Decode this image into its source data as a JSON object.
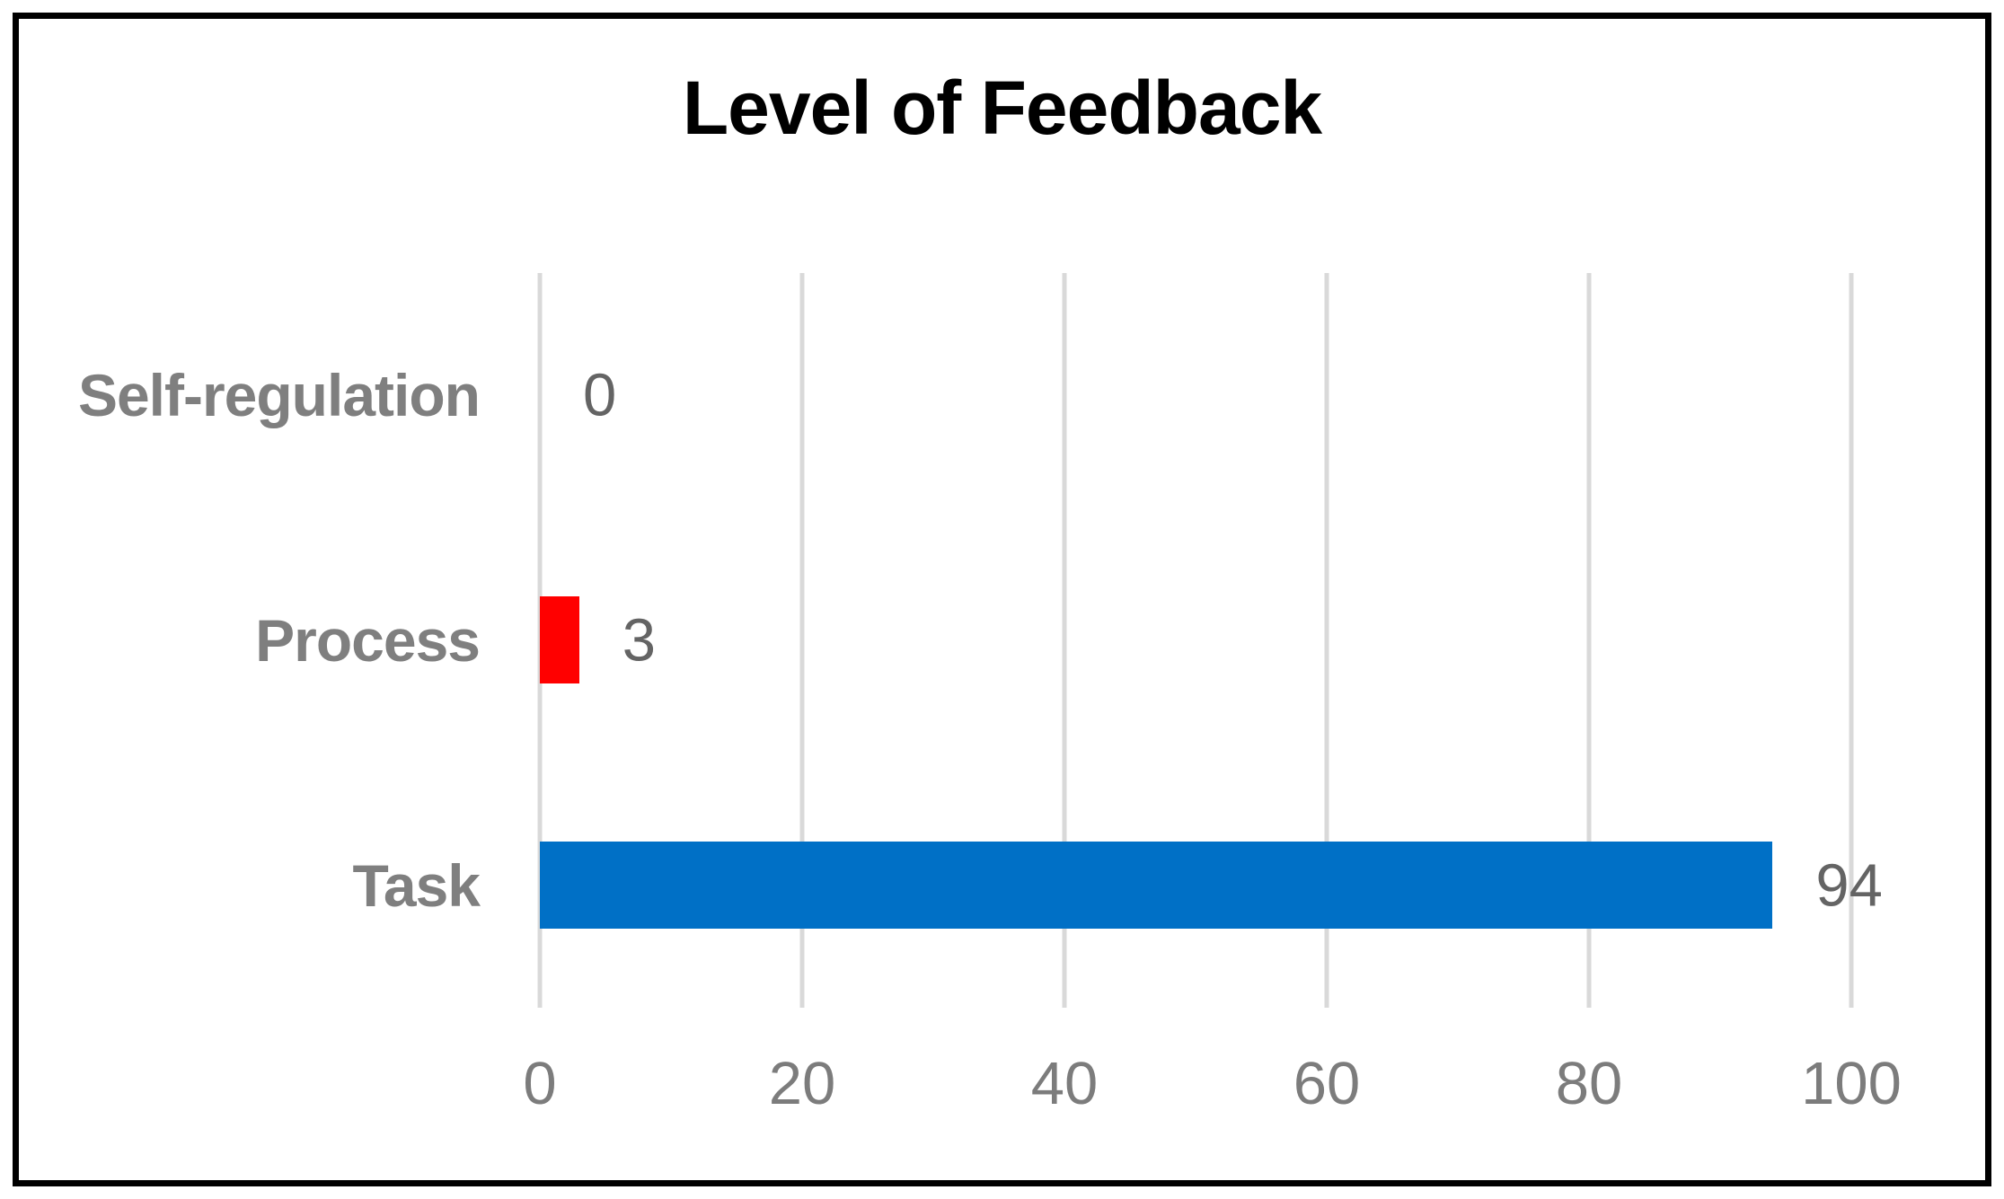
{
  "chart_data": {
    "type": "bar",
    "orientation": "horizontal",
    "title": "Level of Feedback",
    "categories": [
      "Self-regulation",
      "Process",
      "Task"
    ],
    "points": [
      {
        "label": "Self-regulation",
        "value": 0,
        "display": "0",
        "color": "#ff0000"
      },
      {
        "label": "Process",
        "value": 3,
        "display": "3",
        "color": "#ff0000"
      },
      {
        "label": "Task",
        "value": 94,
        "display": "94",
        "color": "#0070c6"
      }
    ],
    "xlim": [
      0,
      100
    ],
    "xticks": [
      "0",
      "20",
      "40",
      "60",
      "80",
      "100"
    ],
    "ylabel": "",
    "xlabel": "",
    "legend": "none",
    "grid": "vertical-major",
    "data_label_position": "outside-end"
  },
  "colors": {
    "border": "#000000",
    "gridline": "#d9d9d9",
    "catlabel": "#7f7f7f",
    "ticklabel": "#7c7c7c",
    "datalabel": "#646464",
    "background": "#ffffff"
  }
}
